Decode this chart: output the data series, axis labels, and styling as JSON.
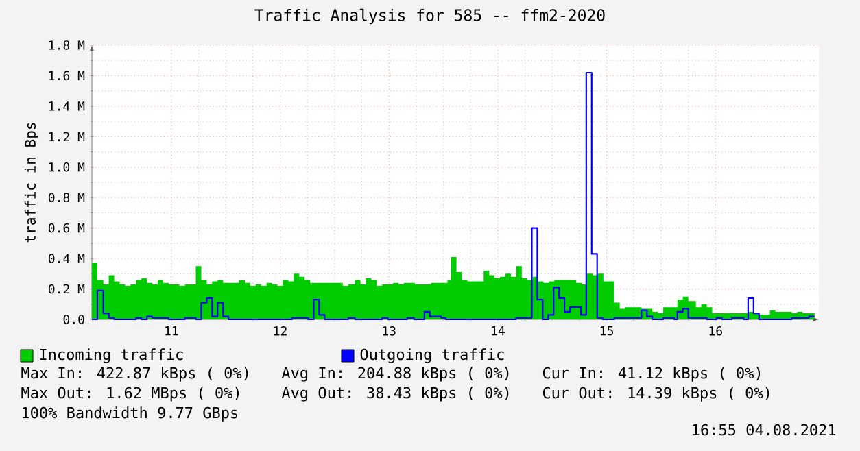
{
  "chart_data": {
    "type": "area",
    "title": "Traffic Analysis for 585 -- ffm2-2020",
    "ylabel": "traffic in Bps",
    "xlim": [
      10.27,
      16.95
    ],
    "ylim": [
      0,
      1.8
    ],
    "xticks": [
      11,
      12,
      13,
      14,
      15,
      16
    ],
    "yticks": [
      {
        "value": 0,
        "label": "0.0"
      },
      {
        "value": 0.2,
        "label": "0.2 M"
      },
      {
        "value": 0.4,
        "label": "0.4 M"
      },
      {
        "value": 0.6,
        "label": "0.6 M"
      },
      {
        "value": 0.8,
        "label": "0.8 M"
      },
      {
        "value": 1.0,
        "label": "1.0 M"
      },
      {
        "value": 1.2,
        "label": "1.2 M"
      },
      {
        "value": 1.4,
        "label": "1.4 M"
      },
      {
        "value": 1.6,
        "label": "1.6 M"
      },
      {
        "value": 1.8,
        "label": "1.8 M"
      }
    ],
    "grid": true,
    "legend": "bottom",
    "series": [
      {
        "name": "Incoming traffic",
        "color": "#00cc00",
        "x": [
          10.27,
          10.32,
          10.375,
          10.425,
          10.475,
          10.525,
          10.575,
          10.625,
          10.675,
          10.725,
          10.775,
          10.825,
          10.875,
          10.925,
          10.975,
          11.075,
          11.125,
          11.225,
          11.275,
          11.325,
          11.375,
          11.425,
          11.475,
          11.625,
          11.675,
          11.725,
          11.775,
          11.825,
          11.875,
          11.925,
          11.975,
          12.025,
          12.075,
          12.125,
          12.175,
          12.225,
          12.275,
          12.575,
          12.625,
          12.6875,
          12.7375,
          12.7875,
          12.8375,
          12.8875,
          12.9375,
          12.9875,
          13.0375,
          13.0875,
          13.1375,
          13.2375,
          13.3875,
          13.5375,
          13.57,
          13.62,
          13.67,
          13.72,
          13.87,
          13.92,
          13.97,
          14.02,
          14.07,
          14.12,
          14.17,
          14.22,
          14.27,
          14.32,
          14.37,
          14.42,
          14.47,
          14.52,
          14.72,
          14.77,
          14.82,
          14.87,
          14.92,
          14.97,
          15.07,
          15.12,
          15.17,
          15.32,
          15.42,
          15.47,
          15.52,
          15.57,
          15.65,
          15.7,
          15.75,
          15.82,
          15.87,
          15.92,
          15.97,
          16.3,
          16.35,
          16.4,
          16.5,
          16.55,
          16.7,
          16.75,
          16.8,
          16.91
        ],
        "values": [
          0.37,
          0.26,
          0.23,
          0.29,
          0.25,
          0.23,
          0.22,
          0.23,
          0.26,
          0.27,
          0.24,
          0.23,
          0.26,
          0.24,
          0.23,
          0.22,
          0.23,
          0.35,
          0.26,
          0.23,
          0.25,
          0.26,
          0.24,
          0.26,
          0.24,
          0.22,
          0.23,
          0.22,
          0.24,
          0.23,
          0.22,
          0.26,
          0.25,
          0.3,
          0.28,
          0.26,
          0.24,
          0.22,
          0.23,
          0.26,
          0.23,
          0.27,
          0.26,
          0.22,
          0.23,
          0.23,
          0.24,
          0.23,
          0.24,
          0.23,
          0.24,
          0.26,
          0.41,
          0.31,
          0.26,
          0.25,
          0.32,
          0.29,
          0.27,
          0.28,
          0.3,
          0.28,
          0.35,
          0.27,
          0.26,
          0.28,
          0.25,
          0.24,
          0.25,
          0.26,
          0.24,
          0.23,
          0.3,
          0.29,
          0.3,
          0.25,
          0.11,
          0.07,
          0.08,
          0.07,
          0.05,
          0.04,
          0.08,
          0.08,
          0.13,
          0.15,
          0.12,
          0.08,
          0.1,
          0.08,
          0.04,
          0.05,
          0.04,
          0.03,
          0.06,
          0.05,
          0.04,
          0.05,
          0.04,
          0.04
        ]
      },
      {
        "name": "Outgoing traffic",
        "type": "step",
        "color": "#0000ff",
        "x": [
          10.27,
          10.32,
          10.375,
          10.425,
          10.475,
          10.675,
          10.725,
          10.775,
          10.825,
          10.975,
          11.125,
          11.225,
          11.275,
          11.325,
          11.375,
          11.425,
          11.475,
          11.525,
          12.108,
          12.258,
          12.308,
          12.358,
          12.408,
          12.625,
          12.6875,
          12.9375,
          12.99,
          13.167,
          13.23,
          13.325,
          13.375,
          13.4375,
          13.479,
          13.52,
          14.167,
          14.3125,
          14.3625,
          14.4125,
          14.4625,
          14.5125,
          14.5625,
          14.6125,
          14.6625,
          14.7125,
          14.7625,
          14.8125,
          14.8625,
          14.9125,
          14.9625,
          15.07,
          15.32,
          15.37,
          15.42,
          15.52,
          15.62,
          15.65,
          15.7,
          15.75,
          15.92,
          16.01,
          16.06,
          16.15,
          16.26,
          16.3,
          16.35,
          16.4,
          16.7,
          16.86,
          16.91
        ],
        "values": [
          0,
          0.19,
          0.04,
          0.01,
          0,
          0.01,
          0,
          0.02,
          0.01,
          0,
          0.01,
          0,
          0.11,
          0.14,
          0.02,
          0.11,
          0.02,
          0,
          0.01,
          0,
          0.13,
          0.03,
          0,
          0.01,
          0,
          0.01,
          0,
          0.01,
          0,
          0.05,
          0.02,
          0.02,
          0.01,
          0,
          0.01,
          0.6,
          0.13,
          0,
          0.03,
          0.21,
          0.14,
          0.05,
          0.08,
          0.08,
          0.03,
          1.62,
          0.43,
          0.01,
          0,
          0.01,
          0.06,
          0.02,
          0,
          0.01,
          0,
          0.05,
          0.07,
          0.01,
          0,
          0.01,
          0,
          0.01,
          0,
          0.14,
          0.04,
          0,
          0.01,
          0.02,
          0.02
        ]
      }
    ],
    "annotations": [
      "Max In: 422.87 kBps ( 0%)",
      "Avg In: 204.88 kBps ( 0%)",
      "Cur In:  41.12 kBps ( 0%)",
      "Max Out:  1.62 MBps ( 0%)",
      "Avg Out: 38.43 kBps ( 0%)",
      "Cur Out: 14.39 kBps ( 0%)",
      "100% Bandwidth 9.77 GBps",
      "16:55 04.08.2021"
    ]
  }
}
